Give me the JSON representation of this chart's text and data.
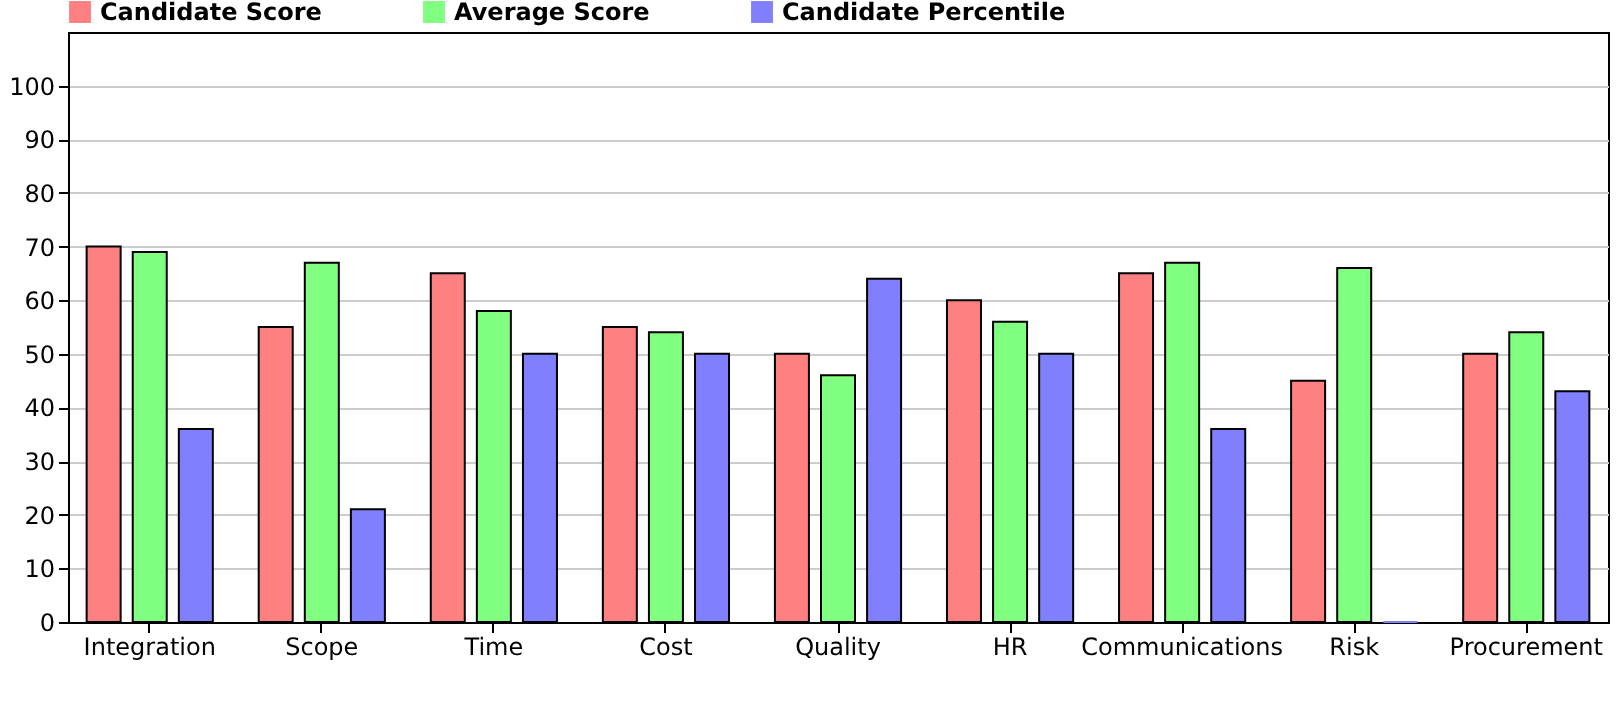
{
  "chart_data": {
    "type": "bar",
    "categories": [
      "Integration",
      "Scope",
      "Time",
      "Cost",
      "Quality",
      "HR",
      "Communications",
      "Risk",
      "Procurement"
    ],
    "series": [
      {
        "name": "Candidate Score",
        "color": "#ff8080",
        "values": [
          70,
          55,
          65,
          55,
          50,
          60,
          65,
          45,
          50
        ]
      },
      {
        "name": "Average Score",
        "color": "#80ff80",
        "values": [
          69,
          67,
          58,
          54,
          46,
          56,
          67,
          66,
          54
        ]
      },
      {
        "name": "Candidate Percentile",
        "color": "#8080ff",
        "values": [
          36,
          21,
          50,
          50,
          64,
          50,
          36,
          0,
          43
        ]
      }
    ],
    "ylim": [
      0,
      110
    ],
    "yticks": [
      0,
      10,
      20,
      30,
      40,
      50,
      60,
      70,
      80,
      90,
      100
    ],
    "grid": "y",
    "legend": "top"
  }
}
